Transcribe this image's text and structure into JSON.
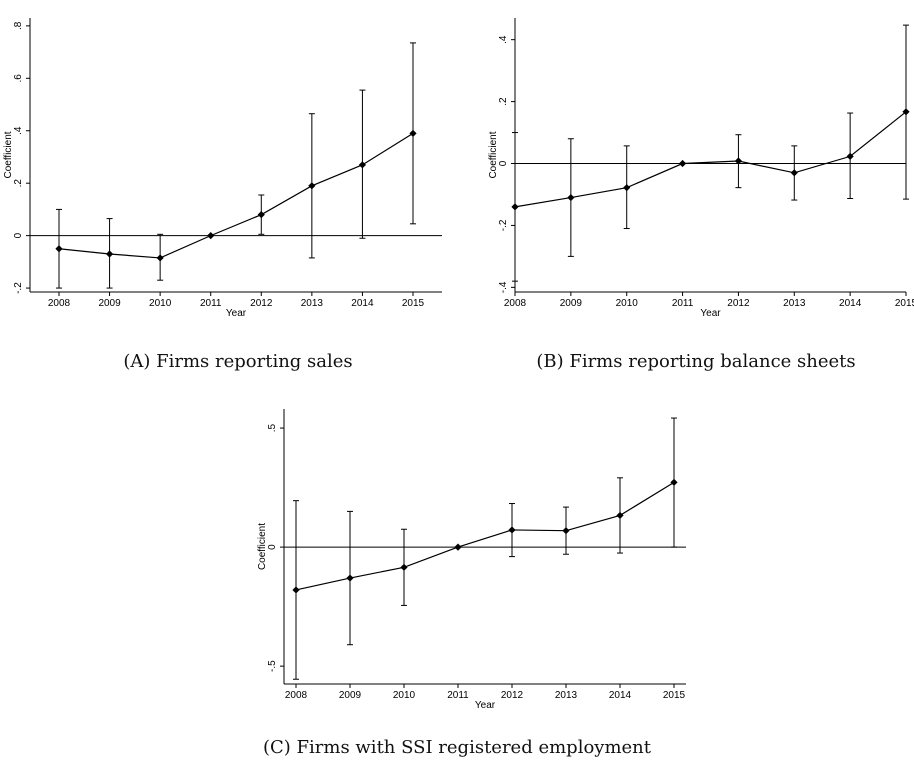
{
  "chart_data": [
    {
      "type": "line",
      "panel": "A",
      "caption": "(A) Firms reporting sales",
      "xlabel": "Year",
      "ylabel": "Coefficient",
      "categories": [
        "2008",
        "2009",
        "2010",
        "2011",
        "2012",
        "2013",
        "2014",
        "2015"
      ],
      "series": [
        {
          "values": [
            -0.05,
            -0.07,
            -0.085,
            0.0,
            0.08,
            0.19,
            0.27,
            0.39
          ],
          "ci_low": [
            -0.2,
            -0.2,
            -0.17,
            0.0,
            0.005,
            -0.085,
            -0.01,
            0.045
          ],
          "ci_high": [
            0.1,
            0.065,
            0.005,
            0.0,
            0.155,
            0.465,
            0.555,
            0.735
          ]
        }
      ],
      "yticks": [
        -0.2,
        0,
        0.2,
        0.4,
        0.6,
        0.8
      ],
      "ytick_labels": [
        "-.2",
        "0",
        ".2",
        ".4",
        ".6",
        ".8"
      ],
      "ylim": [
        -0.215,
        0.83
      ],
      "reference_line": 0
    },
    {
      "type": "line",
      "panel": "B",
      "caption": "(B) Firms reporting balance sheets",
      "xlabel": "Year",
      "ylabel": "Coefficient",
      "categories": [
        "2008",
        "2009",
        "2010",
        "2011",
        "2012",
        "2013",
        "2014",
        "2015"
      ],
      "series": [
        {
          "values": [
            -0.14,
            -0.11,
            -0.078,
            0.0,
            0.008,
            -0.03,
            0.023,
            0.167
          ],
          "ci_low": [
            -0.38,
            -0.3,
            -0.21,
            0.0,
            -0.078,
            -0.118,
            -0.113,
            -0.115
          ],
          "ci_high": [
            0.1,
            0.08,
            0.057,
            0.0,
            0.093,
            0.057,
            0.163,
            0.447
          ]
        }
      ],
      "yticks": [
        -0.4,
        -0.2,
        0,
        0.2,
        0.4
      ],
      "ytick_labels": [
        "-.4",
        "-.2",
        "0",
        ".2",
        ".4"
      ],
      "ylim": [
        -0.415,
        0.47
      ],
      "reference_line": 0
    },
    {
      "type": "line",
      "panel": "C",
      "caption": "(C) Firms with SSI registered employment",
      "xlabel": "Year",
      "ylabel": "Coefficient",
      "categories": [
        "2008",
        "2009",
        "2010",
        "2011",
        "2012",
        "2013",
        "2014",
        "2015"
      ],
      "series": [
        {
          "values": [
            -0.18,
            -0.13,
            -0.085,
            0.0,
            0.072,
            0.069,
            0.133,
            0.272
          ],
          "ci_low": [
            -0.555,
            -0.41,
            -0.245,
            0.0,
            -0.04,
            -0.03,
            -0.025,
            0.0
          ],
          "ci_high": [
            0.195,
            0.15,
            0.075,
            0.0,
            0.183,
            0.168,
            0.291,
            0.542
          ]
        }
      ],
      "yticks": [
        -0.5,
        0,
        0.5
      ],
      "ytick_labels": [
        "-.5",
        "0",
        ".5"
      ],
      "ylim": [
        -0.575,
        0.58
      ],
      "reference_line": 0
    }
  ]
}
